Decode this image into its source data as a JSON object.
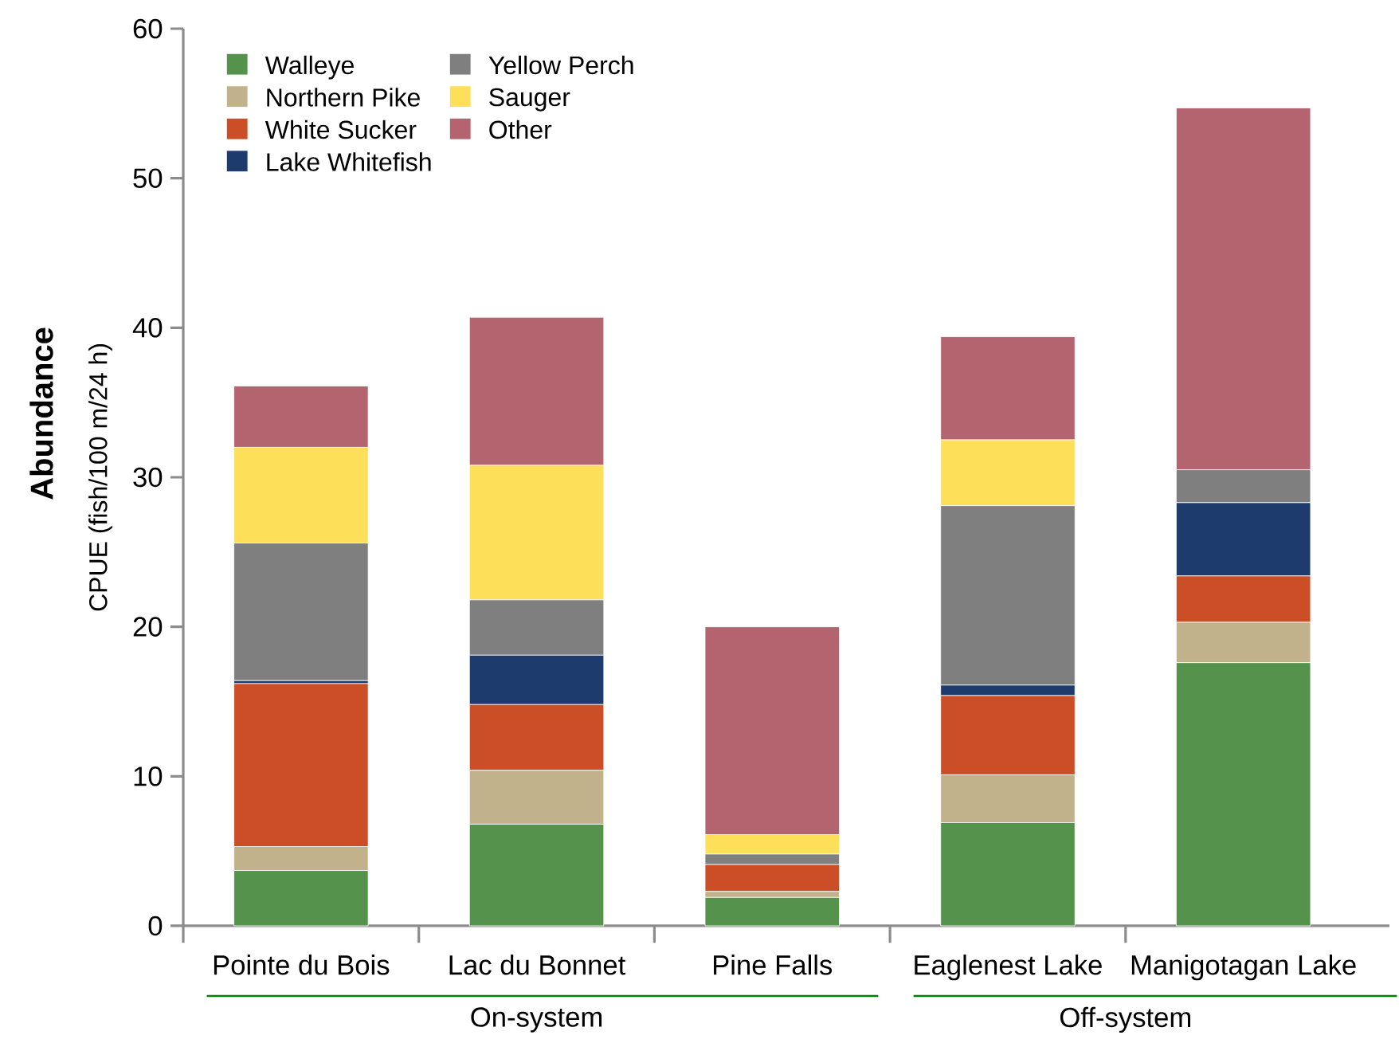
{
  "chart_data": {
    "type": "bar",
    "stacked": true,
    "ylabel": "Abundance",
    "annotations": [
      "CPUE (fish/100 m/24 h)",
      "On-system",
      "Off-system"
    ],
    "categories": [
      "Pointe du Bois",
      "Lac du Bonnet",
      "Pine Falls",
      "Eaglenest Lake",
      "Manigotagan Lake"
    ],
    "series": [
      {
        "name": "Walleye",
        "color": "#55934d",
        "values": [
          3.7,
          6.8,
          1.9,
          6.9,
          17.6
        ]
      },
      {
        "name": "Northern Pike",
        "color": "#c2b28c",
        "values": [
          1.6,
          3.6,
          0.4,
          3.2,
          2.7
        ]
      },
      {
        "name": "White Sucker",
        "color": "#cb4e26",
        "values": [
          10.9,
          4.4,
          1.8,
          5.3,
          3.1
        ]
      },
      {
        "name": "Lake Whitefish",
        "color": "#1e3b6e",
        "values": [
          0.2,
          3.3,
          0,
          0.7,
          4.9
        ]
      },
      {
        "name": "Yellow Perch",
        "color": "#7f7f7f",
        "values": [
          9.2,
          3.7,
          0.7,
          12.0,
          2.2
        ]
      },
      {
        "name": "Sauger",
        "color": "#fddf5a",
        "values": [
          6.4,
          9.0,
          1.3,
          4.4,
          0
        ]
      },
      {
        "name": "Other",
        "color": "#b4646f",
        "values": [
          4.1,
          9.9,
          13.9,
          6.9,
          24.2
        ]
      }
    ],
    "ylim": [
      0,
      60
    ],
    "yticks": [
      0,
      10,
      20,
      30,
      40,
      50,
      60
    ],
    "grid": false,
    "legend": "top left"
  }
}
